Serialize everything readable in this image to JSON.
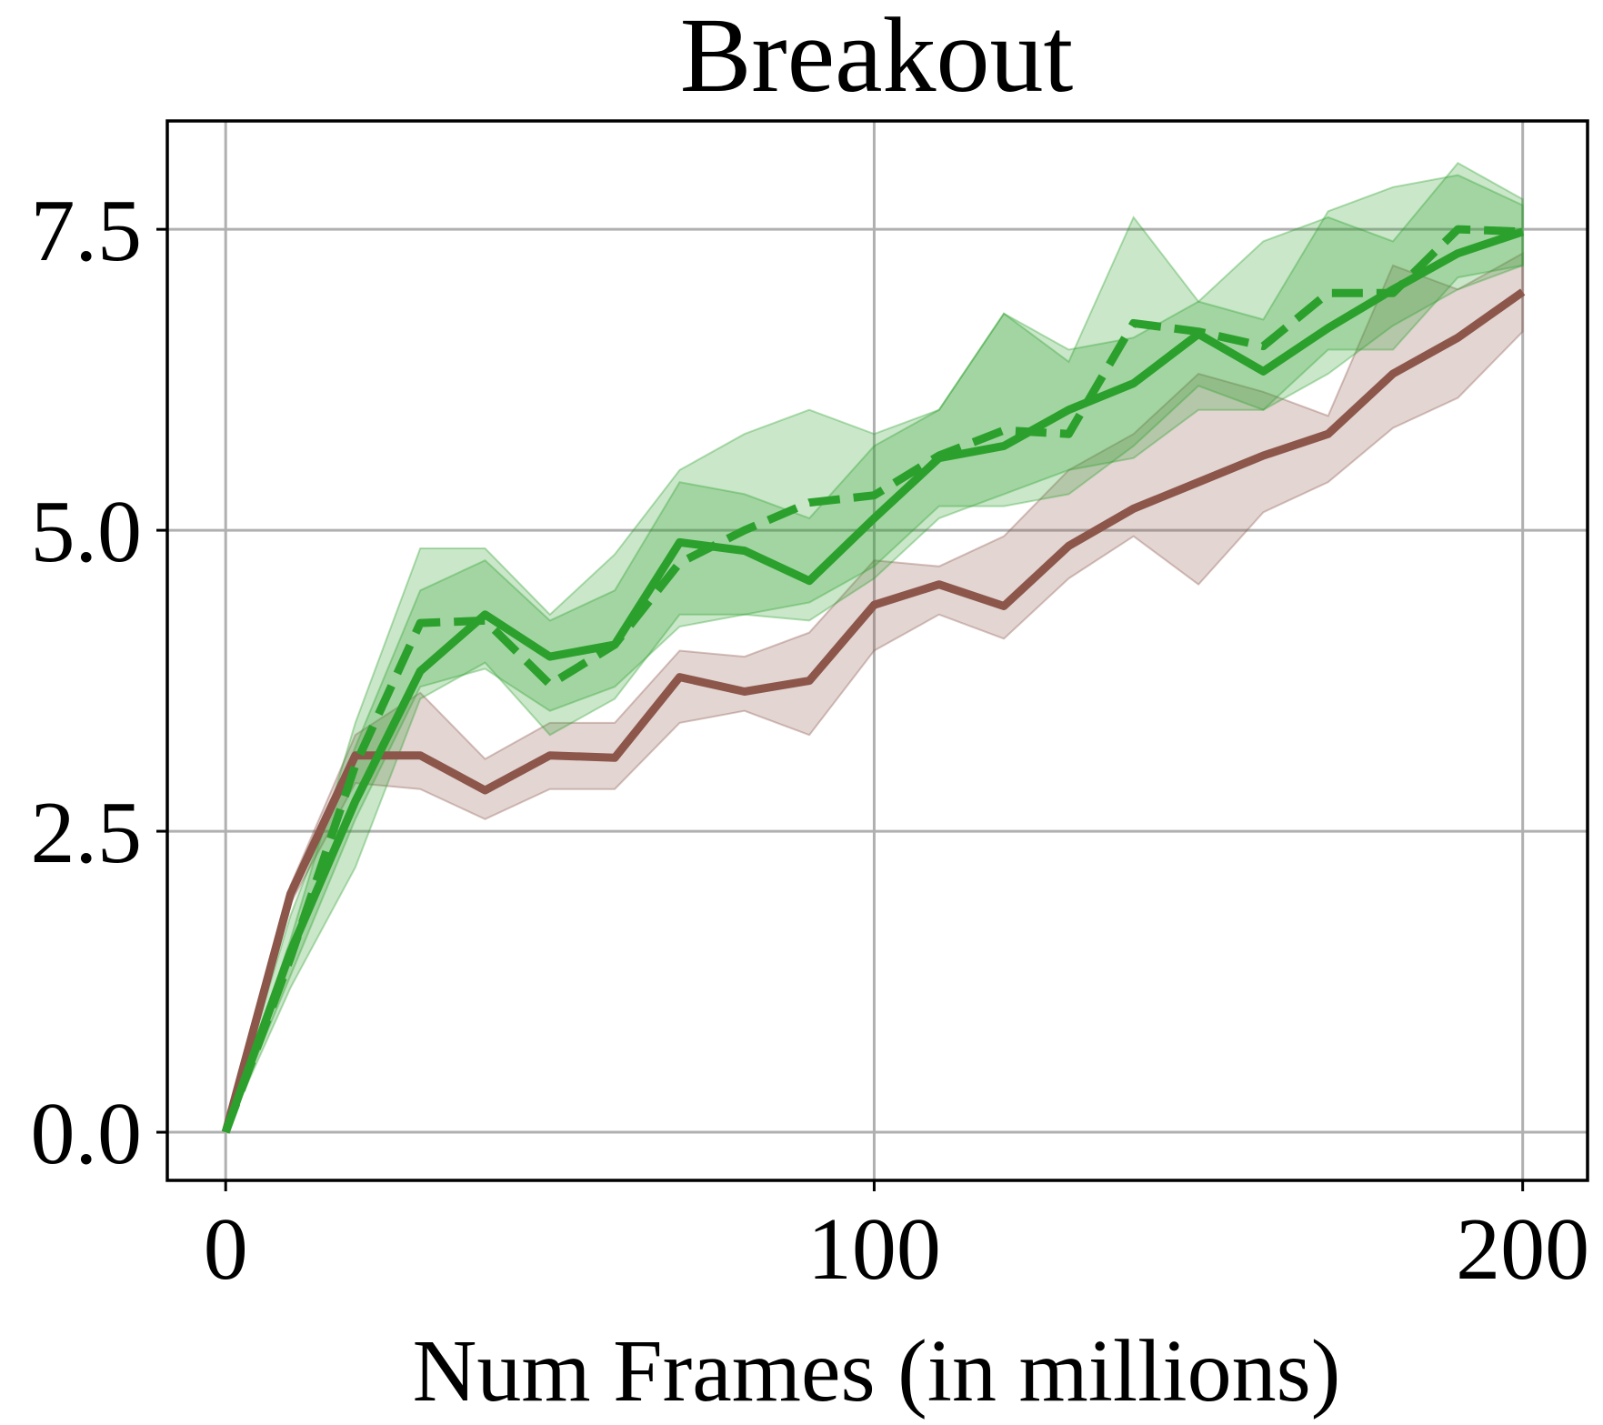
{
  "chart_data": {
    "type": "line",
    "title": "Breakout",
    "xlabel": "Num Frames (in millions)",
    "ylabel": "",
    "xlim": [
      -9,
      210
    ],
    "ylim": [
      -0.4,
      8.4
    ],
    "xticks": [
      0,
      100,
      200
    ],
    "yticks": [
      0.0,
      2.5,
      5.0,
      7.5
    ],
    "xtick_labels": [
      "0",
      "100",
      "200"
    ],
    "ytick_labels": [
      "0.0",
      "2.5",
      "5.0",
      "7.5"
    ],
    "grid": true,
    "legend": null,
    "x": [
      0,
      10,
      20,
      30,
      40,
      50,
      60,
      70,
      80,
      90,
      100,
      110,
      120,
      130,
      140,
      150,
      160,
      170,
      180,
      190,
      200
    ],
    "series": [
      {
        "color": "#8c564b",
        "linestyle": "solid",
        "values": [
          0.0,
          1.98,
          3.13,
          3.13,
          2.84,
          3.13,
          3.11,
          3.78,
          3.66,
          3.75,
          4.38,
          4.55,
          4.37,
          4.87,
          5.18,
          5.4,
          5.62,
          5.8,
          6.3,
          6.6,
          6.98
        ],
        "lower": [
          0.0,
          1.9,
          2.9,
          2.85,
          2.6,
          2.85,
          2.85,
          3.4,
          3.5,
          3.3,
          4.0,
          4.3,
          4.1,
          4.6,
          4.95,
          4.55,
          5.15,
          5.4,
          5.85,
          6.1,
          6.65
        ],
        "upper": [
          0.0,
          2.05,
          3.3,
          3.65,
          3.1,
          3.4,
          3.4,
          4.0,
          3.95,
          4.15,
          4.75,
          4.7,
          4.95,
          5.5,
          5.8,
          6.3,
          6.15,
          5.95,
          7.2,
          7.0,
          7.3
        ]
      },
      {
        "color": "#2ca02c",
        "linestyle": "solid",
        "values": [
          0.0,
          1.5,
          2.75,
          3.83,
          4.3,
          3.95,
          4.05,
          4.9,
          4.83,
          4.58,
          5.1,
          5.6,
          5.7,
          6.0,
          6.22,
          6.63,
          6.32,
          6.68,
          7.0,
          7.3,
          7.48
        ],
        "lower": [
          0.0,
          1.2,
          2.2,
          3.6,
          3.9,
          3.3,
          3.6,
          4.3,
          4.3,
          4.25,
          4.6,
          5.1,
          5.3,
          5.5,
          5.6,
          6.0,
          6.0,
          6.3,
          6.7,
          7.0,
          7.2
        ],
        "upper": [
          0.0,
          1.8,
          3.2,
          4.5,
          4.75,
          4.25,
          4.5,
          5.4,
          5.3,
          5.1,
          5.7,
          6.0,
          6.8,
          6.5,
          6.6,
          6.9,
          6.75,
          7.65,
          7.85,
          7.95,
          7.7
        ]
      },
      {
        "color": "#2ca02c",
        "linestyle": "dashed",
        "values": [
          0.0,
          1.45,
          3.05,
          4.23,
          4.25,
          3.72,
          4.05,
          4.73,
          5.0,
          5.23,
          5.29,
          5.62,
          5.83,
          5.8,
          6.72,
          6.65,
          6.53,
          6.97,
          6.97,
          7.5,
          7.48
        ],
        "lower": [
          0.0,
          1.3,
          2.6,
          3.7,
          3.85,
          3.5,
          3.7,
          4.2,
          4.3,
          4.4,
          4.7,
          5.2,
          5.2,
          5.3,
          5.7,
          6.2,
          6.0,
          6.5,
          6.5,
          7.1,
          7.2
        ],
        "upper": [
          0.0,
          1.6,
          3.4,
          4.85,
          4.85,
          4.3,
          4.8,
          5.5,
          5.8,
          6.0,
          5.8,
          6.0,
          6.8,
          6.4,
          7.6,
          6.9,
          7.4,
          7.6,
          7.4,
          8.05,
          7.75
        ]
      }
    ]
  }
}
